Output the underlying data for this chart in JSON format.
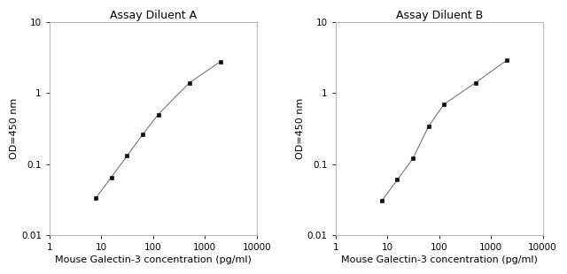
{
  "panel_A": {
    "title": "Assay Diluent A",
    "x": [
      7.8,
      15.6,
      31.25,
      62.5,
      125,
      500,
      2000
    ],
    "y": [
      0.033,
      0.065,
      0.13,
      0.26,
      0.5,
      1.4,
      2.8
    ],
    "xlabel": "Mouse Galectin-3 concentration (pg/ml)",
    "ylabel": "OD=450 nm",
    "xlim": [
      1,
      10000
    ],
    "ylim": [
      0.01,
      10
    ]
  },
  "panel_B": {
    "title": "Assay Diluent B",
    "x": [
      7.8,
      15.6,
      31.25,
      62.5,
      125,
      500,
      2000
    ],
    "y": [
      0.03,
      0.06,
      0.12,
      0.34,
      0.7,
      1.4,
      2.9
    ],
    "xlabel": "Mouse Galectin-3 concentration (pg/ml)",
    "ylabel": "OD=450 nm",
    "xlim": [
      1,
      10000
    ],
    "ylim": [
      0.01,
      10
    ]
  },
  "line_color": "#777777",
  "marker_color": "#111111",
  "marker_size": 3.5,
  "bg_color": "#ffffff",
  "title_fontsize": 9,
  "label_fontsize": 8,
  "tick_fontsize": 7.5,
  "spine_color": "#aaaaaa",
  "x_ticks": [
    1,
    10,
    100,
    1000,
    10000
  ],
  "x_tick_labels": [
    "1",
    "10",
    "100",
    "1000",
    "10000"
  ],
  "y_ticks": [
    0.01,
    0.1,
    1,
    10
  ],
  "y_tick_labels": [
    "0.01",
    "0.1",
    "1",
    "10"
  ]
}
